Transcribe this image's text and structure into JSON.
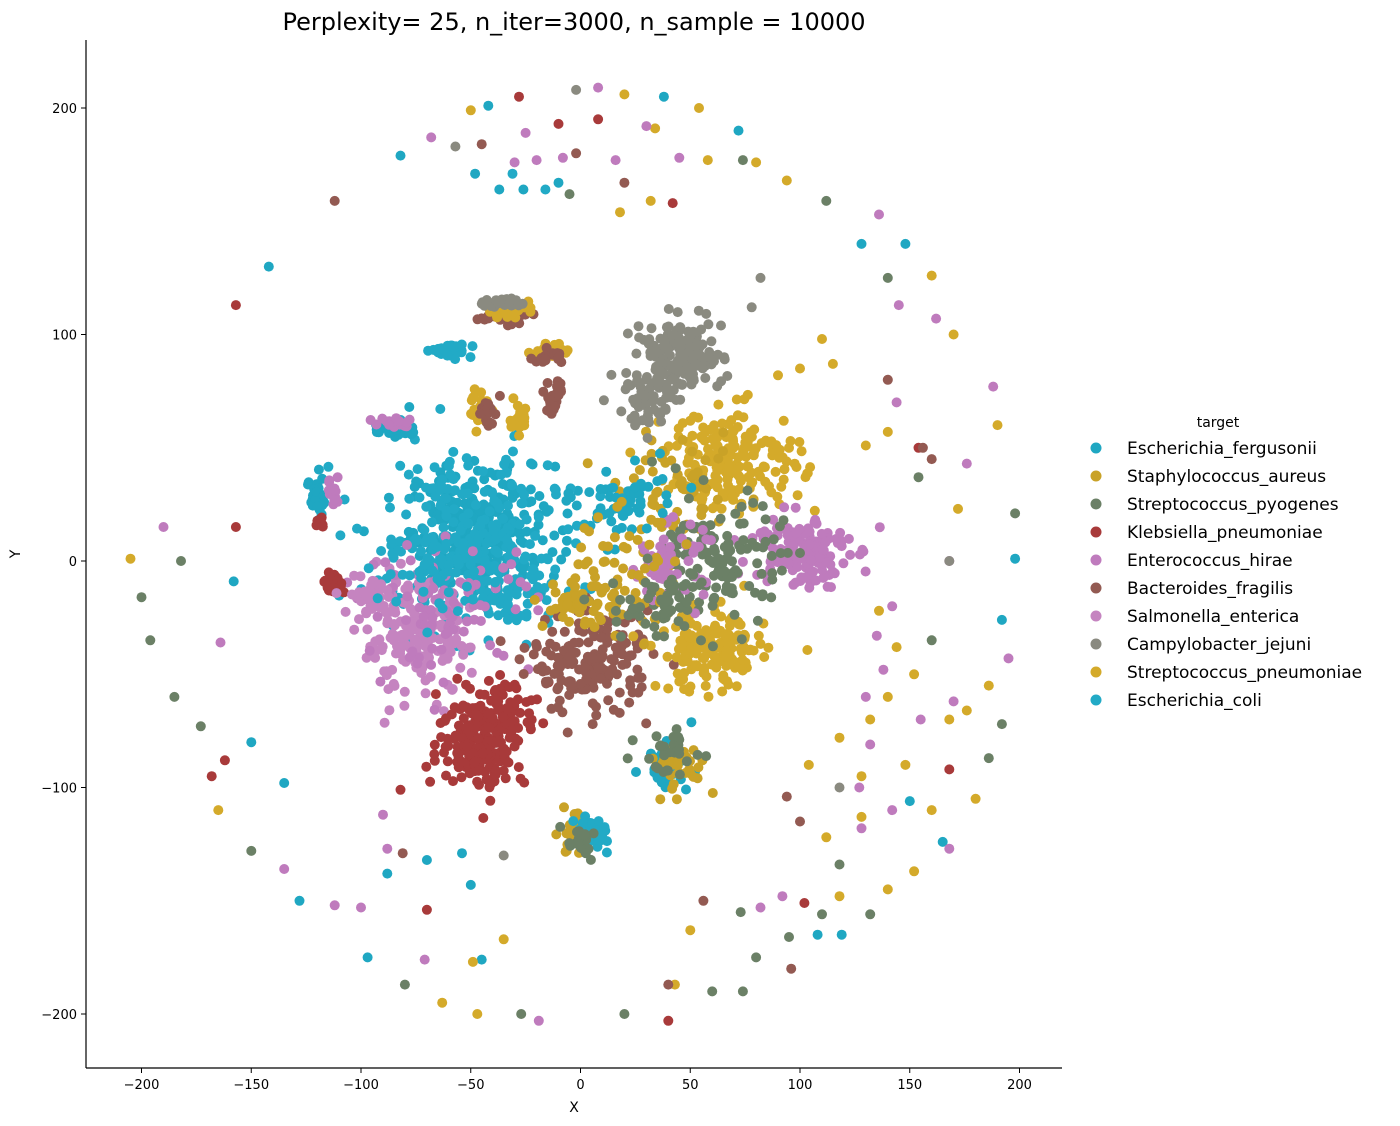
{
  "chart_data": {
    "type": "scatter",
    "title": "Perplexity= 25, n_iter=3000, n_sample = 10000",
    "xlabel": "X",
    "ylabel": "Y",
    "xlim": [
      -225,
      220
    ],
    "ylim": [
      -223,
      230
    ],
    "xticks": [
      -200,
      -150,
      -100,
      -50,
      0,
      50,
      100,
      150,
      200
    ],
    "yticks": [
      -200,
      -100,
      0,
      100,
      200
    ],
    "xtick_labels": [
      "−200",
      "−150",
      "−100",
      "−50",
      "0",
      "50",
      "100",
      "150",
      "200"
    ],
    "ytick_labels": [
      "−200",
      "−100",
      "0",
      "100",
      "200"
    ],
    "grid": false,
    "legend": {
      "title": "target",
      "placement": "right",
      "entries": [
        {
          "name": "Escherichia_fergusonii",
          "color": "#1fa7c2"
        },
        {
          "name": "Staphylococcus_aureus",
          "color": "#c9a227"
        },
        {
          "name": "Streptococcus_pyogenes",
          "color": "#6b8066"
        },
        {
          "name": "Klebsiella_pneumoniae",
          "color": "#a83a3a"
        },
        {
          "name": "Enterococcus_hirae",
          "color": "#bf7bbd"
        },
        {
          "name": "Bacteroides_fragilis",
          "color": "#935a52"
        },
        {
          "name": "Salmonella_enterica",
          "color": "#c584c0"
        },
        {
          "name": "Campylobacter_jejuni",
          "color": "#8a8a80"
        },
        {
          "name": "Streptococcus_pneumoniae",
          "color": "#d4aa2a"
        },
        {
          "name": "Escherichia_coli",
          "color": "#22aac6"
        }
      ]
    },
    "clusters": [
      {
        "series": 0,
        "cx": -45,
        "cy": 15,
        "rx": 30,
        "ry": 25,
        "n": 260
      },
      {
        "series": 9,
        "cx": -55,
        "cy": 10,
        "rx": 40,
        "ry": 35,
        "n": 220
      },
      {
        "series": 9,
        "cx": -30,
        "cy": -15,
        "rx": 18,
        "ry": 15,
        "n": 60
      },
      {
        "series": 6,
        "cx": -75,
        "cy": -35,
        "rx": 22,
        "ry": 22,
        "n": 170
      },
      {
        "series": 4,
        "cx": -60,
        "cy": -20,
        "rx": 35,
        "ry": 25,
        "n": 90
      },
      {
        "series": 3,
        "cx": -45,
        "cy": -80,
        "rx": 18,
        "ry": 18,
        "n": 190
      },
      {
        "series": 3,
        "cx": -35,
        "cy": -65,
        "rx": 15,
        "ry": 12,
        "n": 60
      },
      {
        "series": 5,
        "cx": 5,
        "cy": -45,
        "rx": 25,
        "ry": 20,
        "n": 180
      },
      {
        "series": 1,
        "cx": 0,
        "cy": -20,
        "rx": 15,
        "ry": 8,
        "n": 50
      },
      {
        "series": 8,
        "cx": 60,
        "cy": -40,
        "rx": 22,
        "ry": 16,
        "n": 170
      },
      {
        "series": 8,
        "cx": 70,
        "cy": 45,
        "rx": 28,
        "ry": 20,
        "n": 190
      },
      {
        "series": 1,
        "cx": 45,
        "cy": 30,
        "rx": 25,
        "ry": 20,
        "n": 60
      },
      {
        "series": 7,
        "cx": 45,
        "cy": 90,
        "rx": 18,
        "ry": 15,
        "n": 150
      },
      {
        "series": 7,
        "cx": 30,
        "cy": 70,
        "rx": 15,
        "ry": 10,
        "n": 50
      },
      {
        "series": 4,
        "cx": 100,
        "cy": 5,
        "rx": 20,
        "ry": 15,
        "n": 150
      },
      {
        "series": 2,
        "cx": 65,
        "cy": 0,
        "rx": 25,
        "ry": 25,
        "n": 130
      },
      {
        "series": 4,
        "cx": 40,
        "cy": 0,
        "rx": 15,
        "ry": 15,
        "n": 60
      },
      {
        "series": 0,
        "cx": 20,
        "cy": 25,
        "rx": 20,
        "ry": 15,
        "n": 60
      },
      {
        "series": 1,
        "cx": 15,
        "cy": -5,
        "rx": 30,
        "ry": 25,
        "n": 60
      },
      {
        "series": 2,
        "cx": 35,
        "cy": -20,
        "rx": 20,
        "ry": 15,
        "n": 50
      },
      {
        "series": 0,
        "cx": 40,
        "cy": -90,
        "rx": 10,
        "ry": 8,
        "n": 40
      },
      {
        "series": 1,
        "cx": 45,
        "cy": -90,
        "rx": 12,
        "ry": 10,
        "n": 40
      },
      {
        "series": 2,
        "cx": 40,
        "cy": -85,
        "rx": 12,
        "ry": 10,
        "n": 30
      },
      {
        "series": 1,
        "cx": -3,
        "cy": -120,
        "rx": 8,
        "ry": 8,
        "n": 30
      },
      {
        "series": 9,
        "cx": 6,
        "cy": -120,
        "rx": 7,
        "ry": 7,
        "n": 30
      },
      {
        "series": 2,
        "cx": 0,
        "cy": -125,
        "rx": 8,
        "ry": 6,
        "n": 20
      },
      {
        "series": 0,
        "cx": -85,
        "cy": 58,
        "rx": 8,
        "ry": 3,
        "n": 40
      },
      {
        "series": 4,
        "cx": -85,
        "cy": 61,
        "rx": 8,
        "ry": 2,
        "n": 20
      },
      {
        "series": 5,
        "cx": -35,
        "cy": 109,
        "rx": 10,
        "ry": 4,
        "n": 35
      },
      {
        "series": 8,
        "cx": -35,
        "cy": 111,
        "rx": 10,
        "ry": 3,
        "n": 30
      },
      {
        "series": 7,
        "cx": -35,
        "cy": 114,
        "rx": 8,
        "ry": 2,
        "n": 25
      },
      {
        "series": 9,
        "cx": -58,
        "cy": 93,
        "rx": 9,
        "ry": 4,
        "n": 25
      },
      {
        "series": 8,
        "cx": -45,
        "cy": 67,
        "rx": 5,
        "ry": 7,
        "n": 25
      },
      {
        "series": 5,
        "cx": -42,
        "cy": 65,
        "rx": 5,
        "ry": 6,
        "n": 20
      },
      {
        "series": 8,
        "cx": -28,
        "cy": 65,
        "rx": 3,
        "ry": 8,
        "n": 20
      },
      {
        "series": 5,
        "cx": -12,
        "cy": 72,
        "rx": 4,
        "ry": 8,
        "n": 25
      },
      {
        "series": 8,
        "cx": -13,
        "cy": 93,
        "rx": 7,
        "ry": 3,
        "n": 20
      },
      {
        "series": 5,
        "cx": -15,
        "cy": 90,
        "rx": 7,
        "ry": 3,
        "n": 15
      },
      {
        "series": 0,
        "cx": -120,
        "cy": 30,
        "rx": 3,
        "ry": 10,
        "n": 30
      },
      {
        "series": 4,
        "cx": -112,
        "cy": 30,
        "rx": 3,
        "ry": 6,
        "n": 15
      },
      {
        "series": 3,
        "cx": -113,
        "cy": -10,
        "rx": 4,
        "ry": 4,
        "n": 25
      },
      {
        "series": 3,
        "cx": -118,
        "cy": 17,
        "rx": 3,
        "ry": 2,
        "n": 8
      },
      {
        "series": 6,
        "cx": -95,
        "cy": -15,
        "rx": 10,
        "ry": 8,
        "n": 40
      },
      {
        "series": 9,
        "cx": -65,
        "cy": -5,
        "rx": 30,
        "ry": 20,
        "n": 50
      }
    ],
    "outliers": [
      {
        "series": 0,
        "points": [
          [
            -82,
            179
          ],
          [
            -42,
            201
          ],
          [
            -142,
            130
          ],
          [
            -48,
            171
          ],
          [
            -37,
            164
          ],
          [
            128,
            140
          ],
          [
            148,
            140
          ],
          [
            192,
            -26
          ],
          [
            198,
            1
          ],
          [
            165,
            -124
          ],
          [
            150,
            -106
          ],
          [
            -150,
            -80
          ],
          [
            -128,
            -150
          ],
          [
            -97,
            -175
          ],
          [
            -45,
            -176
          ],
          [
            -135,
            -98
          ],
          [
            -50,
            -143
          ],
          [
            -88,
            -138
          ],
          [
            -70,
            -132
          ],
          [
            -54,
            -129
          ],
          [
            108,
            -165
          ],
          [
            119,
            -165
          ],
          [
            -78,
            68
          ],
          [
            72,
            190
          ],
          [
            38,
            205
          ],
          [
            -26,
            164
          ],
          [
            -10,
            167
          ],
          [
            -158,
            -9
          ]
        ]
      },
      {
        "series": 8,
        "points": [
          [
            -50,
            199
          ],
          [
            20,
            206
          ],
          [
            34,
            191
          ],
          [
            54,
            200
          ],
          [
            58,
            177
          ],
          [
            80,
            176
          ],
          [
            94,
            168
          ],
          [
            -205,
            1
          ],
          [
            -165,
            -110
          ],
          [
            -63,
            -195
          ],
          [
            -49,
            -177
          ],
          [
            -35,
            -167
          ],
          [
            -47,
            -200
          ],
          [
            43,
            -187
          ],
          [
            50,
            -163
          ],
          [
            18,
            154
          ],
          [
            32,
            159
          ],
          [
            160,
            126
          ],
          [
            170,
            100
          ],
          [
            190,
            60
          ],
          [
            172,
            23
          ],
          [
            136,
            -22
          ],
          [
            144,
            -38
          ],
          [
            152,
            -50
          ],
          [
            140,
            -60
          ],
          [
            168,
            -70
          ],
          [
            180,
            -105
          ],
          [
            160,
            -110
          ],
          [
            152,
            -137
          ],
          [
            140,
            -145
          ],
          [
            118,
            -148
          ],
          [
            112,
            -122
          ],
          [
            104,
            -90
          ],
          [
            128,
            -113
          ],
          [
            118,
            -78
          ],
          [
            132,
            -70
          ],
          [
            128,
            -95
          ],
          [
            148,
            -90
          ],
          [
            186,
            -55
          ],
          [
            176,
            -66
          ],
          [
            130,
            51
          ],
          [
            140,
            57
          ],
          [
            115,
            87
          ],
          [
            110,
            98
          ],
          [
            100,
            85
          ],
          [
            90,
            82
          ]
        ]
      },
      {
        "series": 2,
        "points": [
          [
            -200,
            -16
          ],
          [
            -182,
            0
          ],
          [
            -196,
            -35
          ],
          [
            -185,
            -60
          ],
          [
            -173,
            -73
          ],
          [
            -150,
            -128
          ],
          [
            -80,
            -187
          ],
          [
            -27,
            -200
          ],
          [
            20,
            -200
          ],
          [
            60,
            -190
          ],
          [
            74,
            -190
          ],
          [
            80,
            -175
          ],
          [
            73,
            -155
          ],
          [
            95,
            -166
          ],
          [
            110,
            -156
          ],
          [
            118,
            -134
          ],
          [
            132,
            -156
          ],
          [
            160,
            -35
          ],
          [
            192,
            -72
          ],
          [
            198,
            21
          ],
          [
            154,
            37
          ],
          [
            140,
            125
          ],
          [
            112,
            159
          ],
          [
            74,
            177
          ],
          [
            -5,
            162
          ],
          [
            186,
            -87
          ]
        ]
      },
      {
        "series": 3,
        "points": [
          [
            -157,
            113
          ],
          [
            -28,
            205
          ],
          [
            -10,
            193
          ],
          [
            8,
            195
          ],
          [
            -157,
            15
          ],
          [
            -162,
            -88
          ],
          [
            -168,
            -95
          ],
          [
            -70,
            -154
          ],
          [
            -82,
            -101
          ],
          [
            40,
            -203
          ],
          [
            102,
            -151
          ],
          [
            154,
            50
          ],
          [
            42,
            158
          ],
          [
            168,
            -92
          ]
        ]
      },
      {
        "series": 4,
        "points": [
          [
            -8,
            178
          ],
          [
            -25,
            189
          ],
          [
            8,
            209
          ],
          [
            30,
            192
          ],
          [
            -68,
            187
          ],
          [
            -30,
            176
          ],
          [
            -20,
            177
          ],
          [
            145,
            113
          ],
          [
            136,
            153
          ],
          [
            144,
            70
          ],
          [
            162,
            107
          ],
          [
            176,
            43
          ],
          [
            188,
            77
          ],
          [
            195,
            -43
          ],
          [
            168,
            -127
          ],
          [
            142,
            -110
          ],
          [
            132,
            -81
          ],
          [
            127,
            -100
          ],
          [
            168,
            0
          ],
          [
            142,
            -20
          ],
          [
            170,
            -62
          ],
          [
            -190,
            15
          ],
          [
            -164,
            -36
          ],
          [
            -90,
            -112
          ],
          [
            -88,
            -127
          ],
          [
            -100,
            -153
          ],
          [
            -112,
            -152
          ],
          [
            -135,
            -136
          ],
          [
            -71,
            -176
          ],
          [
            -19,
            -203
          ],
          [
            16,
            177
          ],
          [
            45,
            178
          ],
          [
            82,
            -153
          ],
          [
            92,
            -148
          ],
          [
            128,
            -118
          ],
          [
            155,
            -70
          ],
          [
            135,
            -33
          ],
          [
            130,
            -60
          ],
          [
            138,
            -48
          ]
        ]
      },
      {
        "series": 5,
        "points": [
          [
            -112,
            159
          ],
          [
            -2,
            180
          ],
          [
            20,
            167
          ],
          [
            -45,
            184
          ],
          [
            40,
            -187
          ],
          [
            56,
            -150
          ],
          [
            96,
            -180
          ],
          [
            94,
            -104
          ],
          [
            100,
            -115
          ],
          [
            -81,
            -129
          ],
          [
            156,
            50
          ],
          [
            140,
            80
          ],
          [
            160,
            45
          ]
        ]
      },
      {
        "series": 7,
        "points": [
          [
            -57,
            183
          ],
          [
            -2,
            208
          ],
          [
            82,
            125
          ],
          [
            78,
            112
          ],
          [
            168,
            0
          ],
          [
            118,
            -100
          ],
          [
            -35,
            -130
          ]
        ]
      },
      {
        "series": 9,
        "points": [
          [
            -16,
            164
          ],
          [
            -31,
            171
          ]
        ]
      }
    ]
  }
}
